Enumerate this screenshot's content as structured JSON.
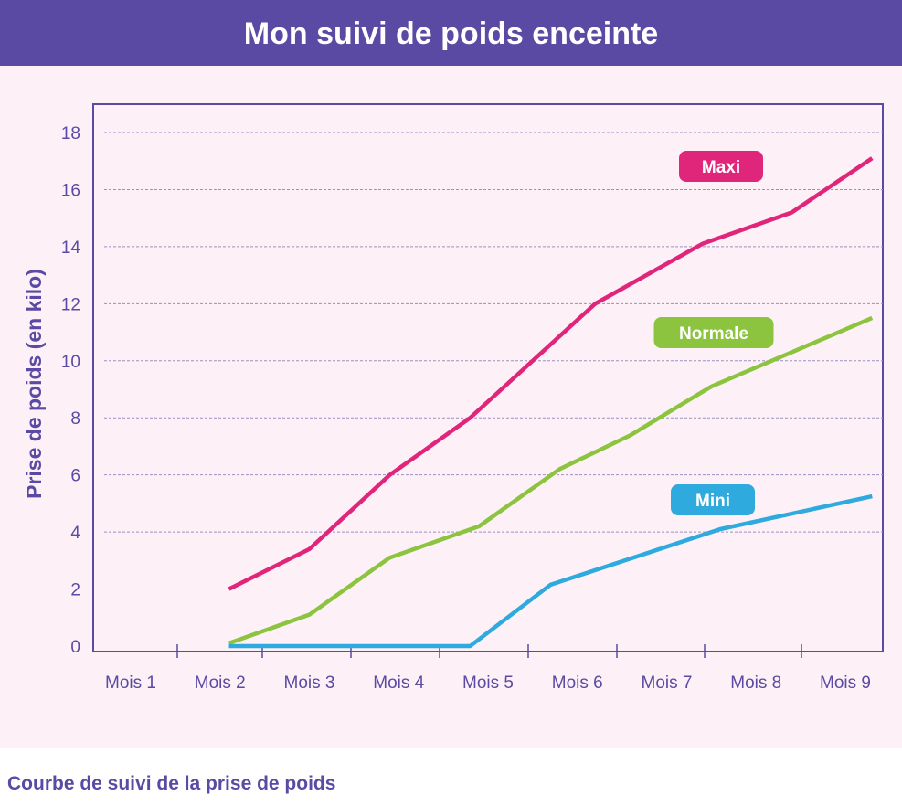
{
  "header": {
    "title": "Mon suivi de poids enceinte"
  },
  "caption": "Courbe de suivi de la prise de poids",
  "chart_data": {
    "type": "line",
    "title": "",
    "xlabel": "",
    "ylabel": "Prise de poids (en kilo)",
    "categories": [
      "Mois 1",
      "Mois 2",
      "Mois 3",
      "Mois 4",
      "Mois 5",
      "Mois 6",
      "Mois 7",
      "Mois 8",
      "Mois 9"
    ],
    "ylim": [
      0,
      18
    ],
    "yticks": [
      0,
      2,
      4,
      6,
      8,
      10,
      12,
      14,
      16,
      18
    ],
    "grid": "horizontal dashed",
    "legend": "inline labels",
    "series": [
      {
        "name": "Maxi",
        "color": "#e0267a",
        "points": [
          [
            2.1,
            2.0
          ],
          [
            3.0,
            3.4
          ],
          [
            3.9,
            6.0
          ],
          [
            4.8,
            8.0
          ],
          [
            6.2,
            12.0
          ],
          [
            7.4,
            14.1
          ],
          [
            8.4,
            15.2
          ],
          [
            9.3,
            17.1
          ]
        ]
      },
      {
        "name": "Normale",
        "color": "#8cc43f",
        "points": [
          [
            2.1,
            0.1
          ],
          [
            3.0,
            1.1
          ],
          [
            3.9,
            3.1
          ],
          [
            4.9,
            4.2
          ],
          [
            5.8,
            6.2
          ],
          [
            6.6,
            7.4
          ],
          [
            7.5,
            9.1
          ],
          [
            9.3,
            11.5
          ]
        ]
      },
      {
        "name": "Mini",
        "color": "#2eaadf",
        "points": [
          [
            2.1,
            0
          ],
          [
            4.8,
            0
          ],
          [
            5.7,
            2.15
          ],
          [
            7.6,
            4.1
          ],
          [
            9.3,
            5.25
          ]
        ]
      }
    ]
  }
}
